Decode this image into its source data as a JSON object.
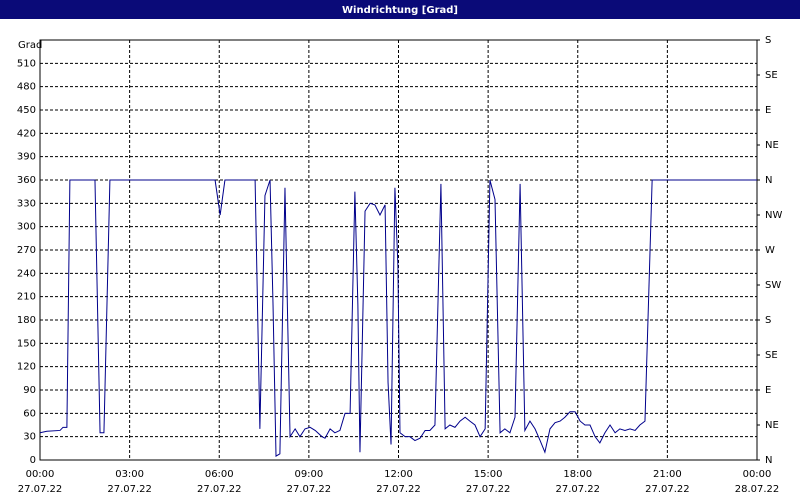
{
  "chart_data": {
    "type": "line",
    "title": "Windrichtung [Grad]",
    "ylabel": "Grad",
    "color": "#00008b",
    "grid": true,
    "x": [
      0,
      0.23,
      0.67,
      0.77,
      0.9,
      1.0,
      1.84,
      2.01,
      2.14,
      2.34,
      5.86,
      6.03,
      6.19,
      7.2,
      7.36,
      7.53,
      7.7,
      7.8,
      7.9,
      8.03,
      8.2,
      8.37,
      8.54,
      8.7,
      8.87,
      9.04,
      9.21,
      9.44,
      9.54,
      9.71,
      9.87,
      10.04,
      10.21,
      10.38,
      10.54,
      10.64,
      10.71,
      10.88,
      11.05,
      11.21,
      11.38,
      11.55,
      11.65,
      11.75,
      11.88,
      11.98,
      12.05,
      12.22,
      12.38,
      12.55,
      12.72,
      12.89,
      13.05,
      13.22,
      13.42,
      13.56,
      13.72,
      13.89,
      14.06,
      14.23,
      14.39,
      14.56,
      14.73,
      14.9,
      15.06,
      15.23,
      15.4,
      15.56,
      15.73,
      15.9,
      16.07,
      16.23,
      16.4,
      16.57,
      16.74,
      16.9,
      17.07,
      17.24,
      17.41,
      17.57,
      17.74,
      17.91,
      18.08,
      18.24,
      18.41,
      18.58,
      18.74,
      18.91,
      19.08,
      19.25,
      19.41,
      19.58,
      19.75,
      19.92,
      20.08,
      20.25,
      20.49,
      24
    ],
    "values": [
      35,
      37,
      38,
      42,
      42,
      360,
      360,
      35,
      35,
      360,
      360,
      315,
      360,
      360,
      40,
      340,
      360,
      200,
      5,
      8,
      350,
      30,
      40,
      30,
      40,
      42,
      38,
      30,
      28,
      40,
      35,
      38,
      60,
      60,
      345,
      200,
      10,
      320,
      330,
      328,
      315,
      328,
      100,
      20,
      350,
      250,
      35,
      30,
      30,
      25,
      28,
      38,
      38,
      45,
      355,
      40,
      45,
      42,
      50,
      55,
      50,
      45,
      30,
      40,
      360,
      335,
      35,
      40,
      35,
      55,
      355,
      38,
      50,
      40,
      25,
      10,
      40,
      48,
      50,
      55,
      62,
      62,
      50,
      45,
      45,
      30,
      22,
      35,
      45,
      35,
      40,
      38,
      40,
      38,
      45,
      50,
      360,
      360
    ],
    "xlim": [
      0,
      24
    ],
    "xticks": [
      {
        "value": 0,
        "label": "00:00"
      },
      {
        "value": 3,
        "label": "03:00"
      },
      {
        "value": 6,
        "label": "06:00"
      },
      {
        "value": 9,
        "label": "09:00"
      },
      {
        "value": 12,
        "label": "12:00"
      },
      {
        "value": 15,
        "label": "15:00"
      },
      {
        "value": 18,
        "label": "18:00"
      },
      {
        "value": 21,
        "label": "21:00"
      },
      {
        "value": 24,
        "label": "00:00"
      }
    ],
    "xtick_dates": [
      "27.07.22",
      "27.07.22",
      "27.07.22",
      "27.07.22",
      "27.07.22",
      "27.07.22",
      "27.07.22",
      "27.07.22",
      "28.07.22"
    ],
    "ylim": [
      0,
      540
    ],
    "yticks": [
      0,
      30,
      60,
      90,
      120,
      150,
      180,
      210,
      240,
      270,
      300,
      330,
      360,
      390,
      420,
      450,
      480,
      510
    ],
    "y2lim": [
      0,
      540
    ],
    "y2ticks": [
      {
        "value": 0,
        "label": "N"
      },
      {
        "value": 45,
        "label": "NE"
      },
      {
        "value": 90,
        "label": "E"
      },
      {
        "value": 135,
        "label": "SE"
      },
      {
        "value": 180,
        "label": "S"
      },
      {
        "value": 225,
        "label": "SW"
      },
      {
        "value": 270,
        "label": "W"
      },
      {
        "value": 315,
        "label": "NW"
      },
      {
        "value": 360,
        "label": "N"
      },
      {
        "value": 405,
        "label": "NE"
      },
      {
        "value": 450,
        "label": "E"
      },
      {
        "value": 495,
        "label": "SE"
      },
      {
        "value": 540,
        "label": "S"
      }
    ]
  }
}
